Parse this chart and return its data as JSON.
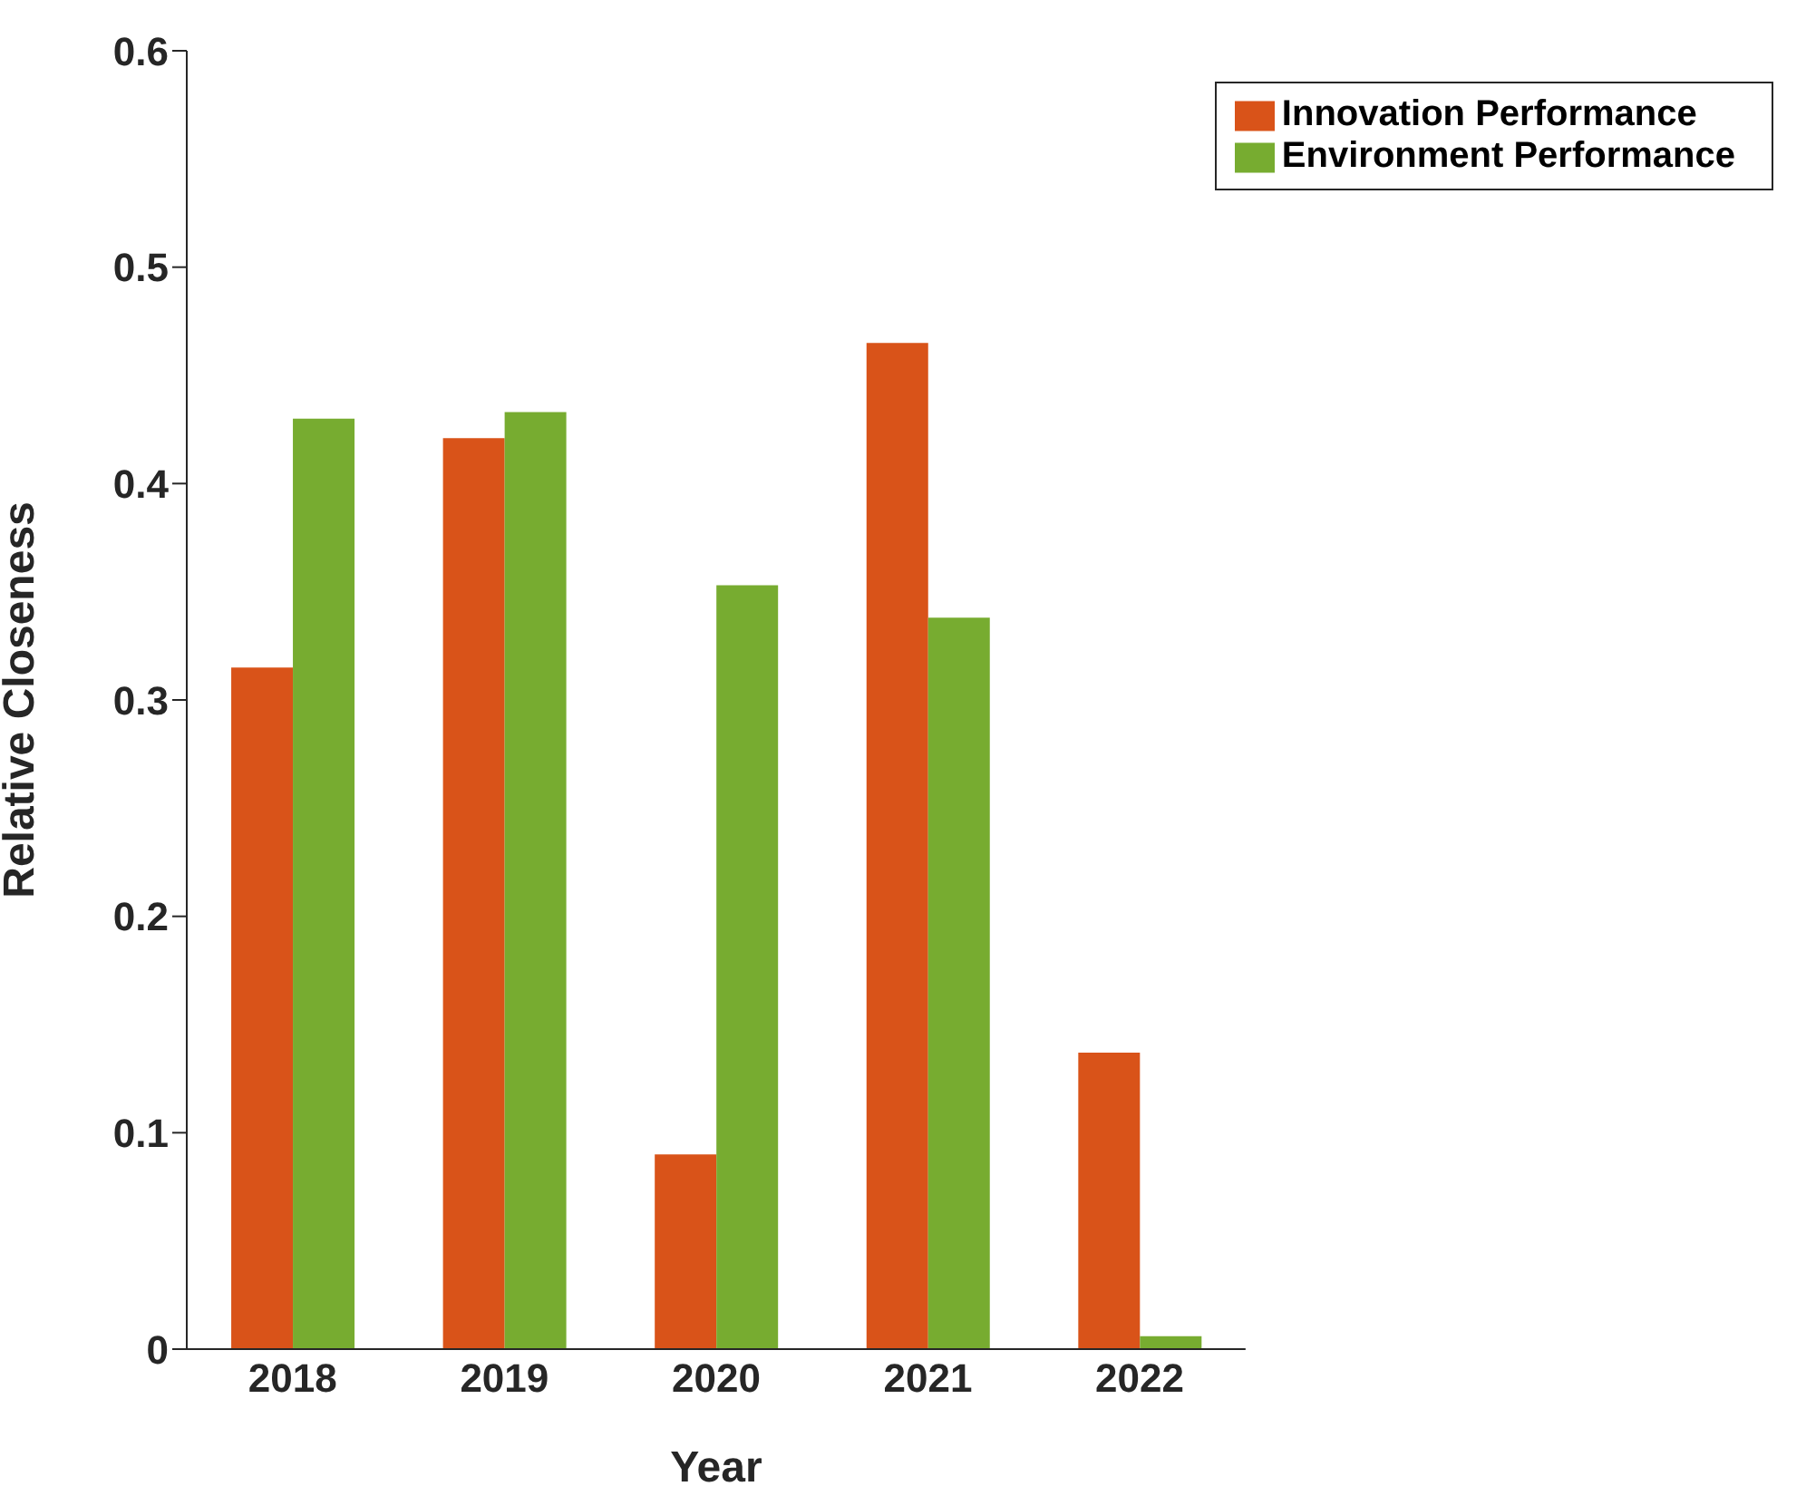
{
  "chart_data": {
    "type": "bar",
    "xlabel": "Year",
    "ylabel": "Relative Closeness",
    "categories": [
      "2018",
      "2019",
      "2020",
      "2021",
      "2022"
    ],
    "series": [
      {
        "name": "Innovation Performance",
        "color": "#d95319",
        "values": [
          0.315,
          0.421,
          0.09,
          0.465,
          0.137
        ]
      },
      {
        "name": "Environment Performance",
        "color": "#77ac30",
        "values": [
          0.43,
          0.433,
          0.353,
          0.338,
          0.006
        ]
      }
    ],
    "ylim": [
      0,
      0.6
    ],
    "yticks": [
      0,
      0.1,
      0.2,
      0.3,
      0.4,
      0.5,
      0.6
    ],
    "legend": "top right",
    "grid": false
  }
}
